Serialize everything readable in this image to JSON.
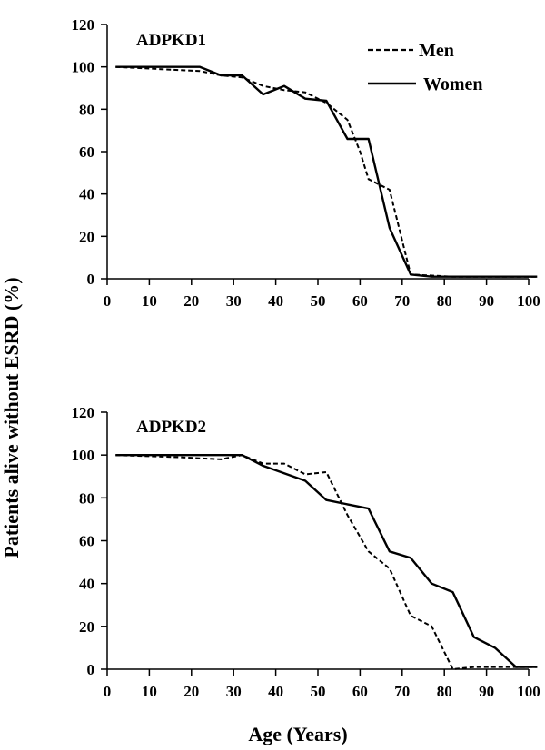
{
  "figure": {
    "ylabel": "Patients alive without ESRD (%)",
    "xlabel": "Age (Years)"
  },
  "chart_data": [
    {
      "type": "line",
      "title": "ADPKD1",
      "xlim": [
        0,
        100
      ],
      "ylim": [
        0,
        120
      ],
      "xticks": [
        0,
        10,
        20,
        30,
        40,
        50,
        60,
        70,
        80,
        90,
        100
      ],
      "yticks": [
        0,
        20,
        40,
        60,
        80,
        100,
        120
      ],
      "grid": false,
      "legend_position": "top-right",
      "series": [
        {
          "name": "Men",
          "style": "dashed",
          "color": "#000000",
          "x": [
            2,
            22,
            27,
            32,
            37,
            42,
            47,
            52,
            57,
            60,
            62,
            67,
            72,
            82,
            92,
            102
          ],
          "y": [
            100,
            98,
            96,
            95,
            91,
            89,
            88,
            83,
            75,
            60,
            47,
            42,
            2,
            1,
            1,
            1
          ]
        },
        {
          "name": "Women",
          "style": "solid",
          "color": "#000000",
          "x": [
            2,
            22,
            27,
            32,
            37,
            42,
            47,
            52,
            57,
            62,
            67,
            72,
            77,
            82,
            92,
            102
          ],
          "y": [
            100,
            100,
            96,
            96,
            87,
            91,
            85,
            84,
            66,
            66,
            24,
            2,
            1,
            1,
            1,
            1
          ]
        }
      ]
    },
    {
      "type": "line",
      "title": "ADPKD2",
      "xlim": [
        0,
        100
      ],
      "ylim": [
        0,
        120
      ],
      "xticks": [
        0,
        10,
        20,
        30,
        40,
        50,
        60,
        70,
        80,
        90,
        100
      ],
      "yticks": [
        0,
        20,
        40,
        60,
        80,
        100,
        120
      ],
      "grid": false,
      "series": [
        {
          "name": "Men",
          "style": "dashed",
          "color": "#000000",
          "x": [
            2,
            17,
            27,
            32,
            37,
            42,
            47,
            52,
            57,
            62,
            67,
            72,
            77,
            82,
            87,
            92,
            97,
            102
          ],
          "y": [
            100,
            99,
            98,
            100,
            96,
            96,
            91,
            92,
            72,
            55,
            47,
            25,
            20,
            0,
            1,
            1,
            1,
            1
          ]
        },
        {
          "name": "Women",
          "style": "solid",
          "color": "#000000",
          "x": [
            2,
            32,
            37,
            47,
            52,
            57,
            62,
            67,
            72,
            77,
            82,
            87,
            92,
            97,
            102
          ],
          "y": [
            100,
            100,
            95,
            88,
            79,
            77,
            75,
            55,
            52,
            40,
            36,
            15,
            10,
            1,
            1
          ]
        }
      ]
    }
  ]
}
